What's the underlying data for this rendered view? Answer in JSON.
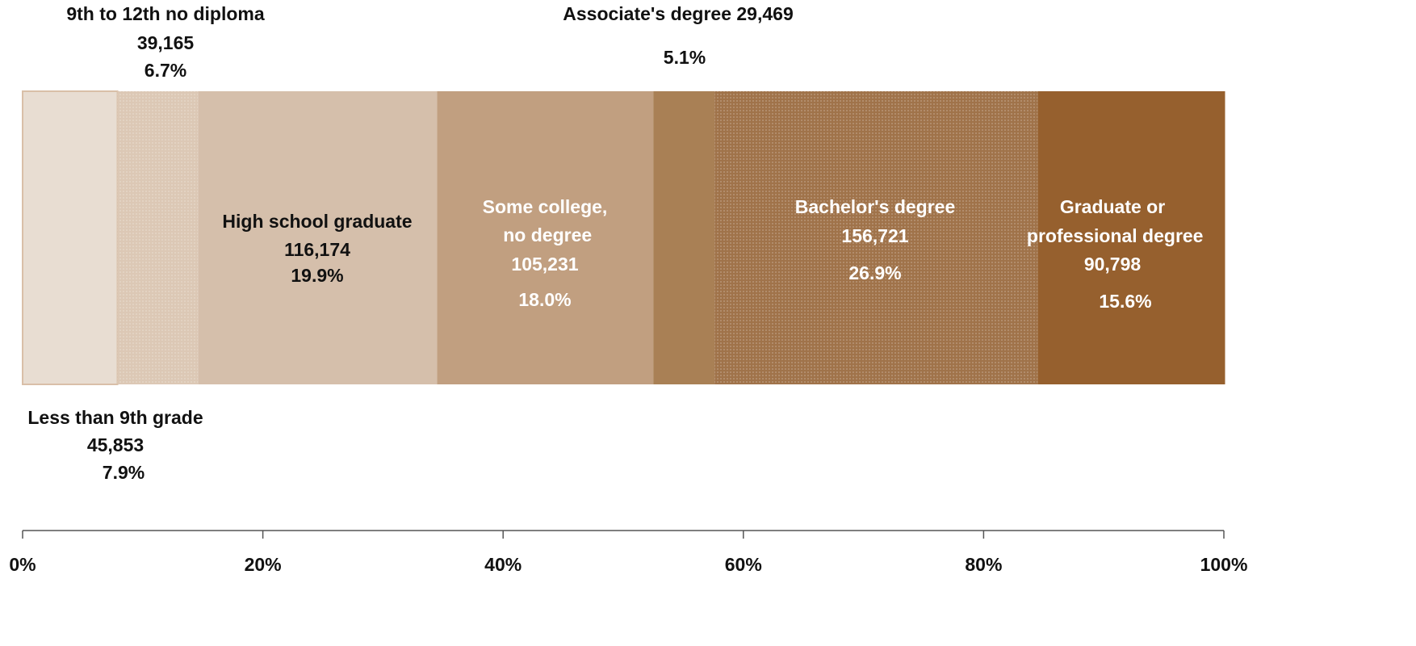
{
  "chart_data": {
    "type": "stacked_bar_horizontal",
    "xlim": [
      0,
      100
    ],
    "xticks": [
      {
        "value": 0,
        "label": "0%"
      },
      {
        "value": 20,
        "label": "20%"
      },
      {
        "value": 40,
        "label": "40%"
      },
      {
        "value": 60,
        "label": "60%"
      },
      {
        "value": 80,
        "label": "80%"
      },
      {
        "value": 100,
        "label": "100%"
      }
    ],
    "series": [
      {
        "name": "Less than 9th grade",
        "count": "45,853",
        "color": "#e8ddd2",
        "values": [
          7.9
        ],
        "value_labels": [
          "7.9%"
        ]
      },
      {
        "name": "9th to 12th no diploma",
        "count": "39,165",
        "color": "#dcc8b5",
        "values": [
          6.7
        ],
        "value_labels": [
          "6.7%"
        ]
      },
      {
        "name": "High school graduate",
        "count": "116,174",
        "color": "#d5bfab",
        "values": [
          19.9
        ],
        "value_labels": [
          "19.9%"
        ]
      },
      {
        "name": "Some college, no degree",
        "count": "105,231",
        "color": "#c19f80",
        "values": [
          18.0
        ],
        "value_labels": [
          "18.0%"
        ]
      },
      {
        "name": "Associate's degree",
        "count": "29,469",
        "color": "#a98055",
        "values": [
          5.1
        ],
        "value_labels": [
          "5.1%"
        ]
      },
      {
        "name": "Bachelor's degree",
        "count": "156,721",
        "color": "#a0734a",
        "values": [
          26.9
        ],
        "value_labels": [
          "26.9%"
        ]
      },
      {
        "name": "Graduate or professional degree",
        "count": "90,798",
        "color": "#96602e",
        "values": [
          15.6
        ],
        "value_labels": [
          "15.6%"
        ]
      }
    ]
  }
}
